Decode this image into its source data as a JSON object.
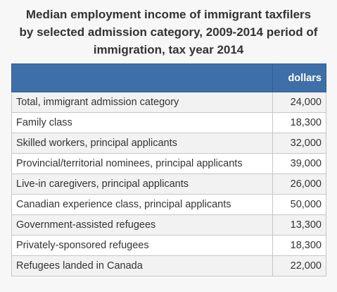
{
  "title_lines": [
    "Median employment income of immigrant taxfilers",
    "by selected admission category, 2009-2014 period of",
    "immigration, tax year 2014"
  ],
  "chart_data": {
    "type": "table",
    "title": "Median employment income of immigrant taxfilers by selected admission category, 2009-2014 period of immigration, tax year 2014",
    "columns": [
      "",
      "dollars"
    ],
    "categories": [
      "Total, immigrant admission category",
      "Family class",
      "Skilled workers, principal applicants",
      "Provincial/territorial nominees, principal applicants",
      "Live-in caregivers, principal applicants",
      "Canadian experience class, principal applicants",
      "Government-assisted refugees",
      "Privately-sponsored refugees",
      "Refugees landed in Canada"
    ],
    "values": [
      24000,
      18300,
      32000,
      39000,
      26000,
      50000,
      13300,
      18300,
      22000
    ],
    "value_labels": [
      "24,000",
      "18,300",
      "32,000",
      "39,000",
      "26,000",
      "50,000",
      "13,300",
      "18,300",
      "22,000"
    ],
    "unit": "dollars"
  },
  "colors": {
    "header_bg": "#3e6fa8",
    "header_text": "#ffffff",
    "row_odd": "#f2f2f2",
    "row_even": "#ffffff",
    "border": "#c6c6c6"
  }
}
